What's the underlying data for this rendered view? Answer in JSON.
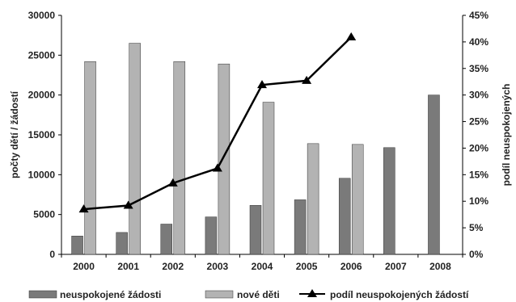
{
  "chart_data": {
    "type": "bar+line",
    "title": "",
    "categories": [
      "2000",
      "2001",
      "2002",
      "2003",
      "2004",
      "2005",
      "2006",
      "2007",
      "2008"
    ],
    "series": [
      {
        "name": "neuspokojené žádosti",
        "type": "bar",
        "axis": "left",
        "color": "#7a7a7a",
        "values": [
          2300,
          2750,
          3800,
          4700,
          6150,
          6850,
          9550,
          13400,
          20000
        ]
      },
      {
        "name": "nové děti",
        "type": "bar",
        "axis": "left",
        "color": "#b3b3b3",
        "values": [
          24200,
          26500,
          24200,
          23900,
          19100,
          13900,
          13800,
          null,
          null
        ]
      },
      {
        "name": "podíl neuspokojených žádostí",
        "type": "line",
        "axis": "right",
        "color": "#000000",
        "marker": "triangle",
        "values": [
          8.5,
          9.2,
          13.4,
          16.2,
          31.9,
          32.7,
          40.9,
          null,
          null
        ]
      }
    ],
    "ylabel": "počty dětí / žádostí",
    "y2label": "podíl neuspokojených",
    "ylim": [
      0,
      30000
    ],
    "yticks": [
      0,
      5000,
      10000,
      15000,
      20000,
      25000,
      30000
    ],
    "y2lim": [
      0,
      45
    ],
    "y2ticks": [
      "0%",
      "5%",
      "10%",
      "15%",
      "20%",
      "25%",
      "30%",
      "35%",
      "40%",
      "45%"
    ],
    "grid": false,
    "legend": "bottom"
  }
}
